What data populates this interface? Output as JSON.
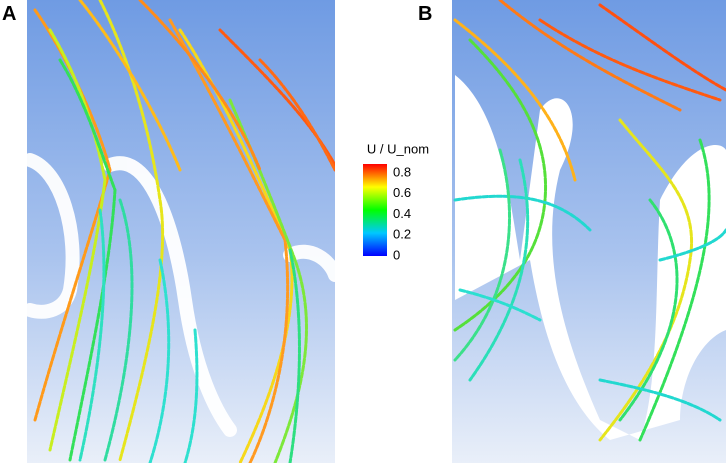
{
  "panels": [
    {
      "label": "A"
    },
    {
      "label": "B"
    }
  ],
  "colorbar": {
    "title": "U / U_nom",
    "ticks": [
      0.8,
      0.6,
      0.4,
      0.2,
      0
    ]
  }
}
